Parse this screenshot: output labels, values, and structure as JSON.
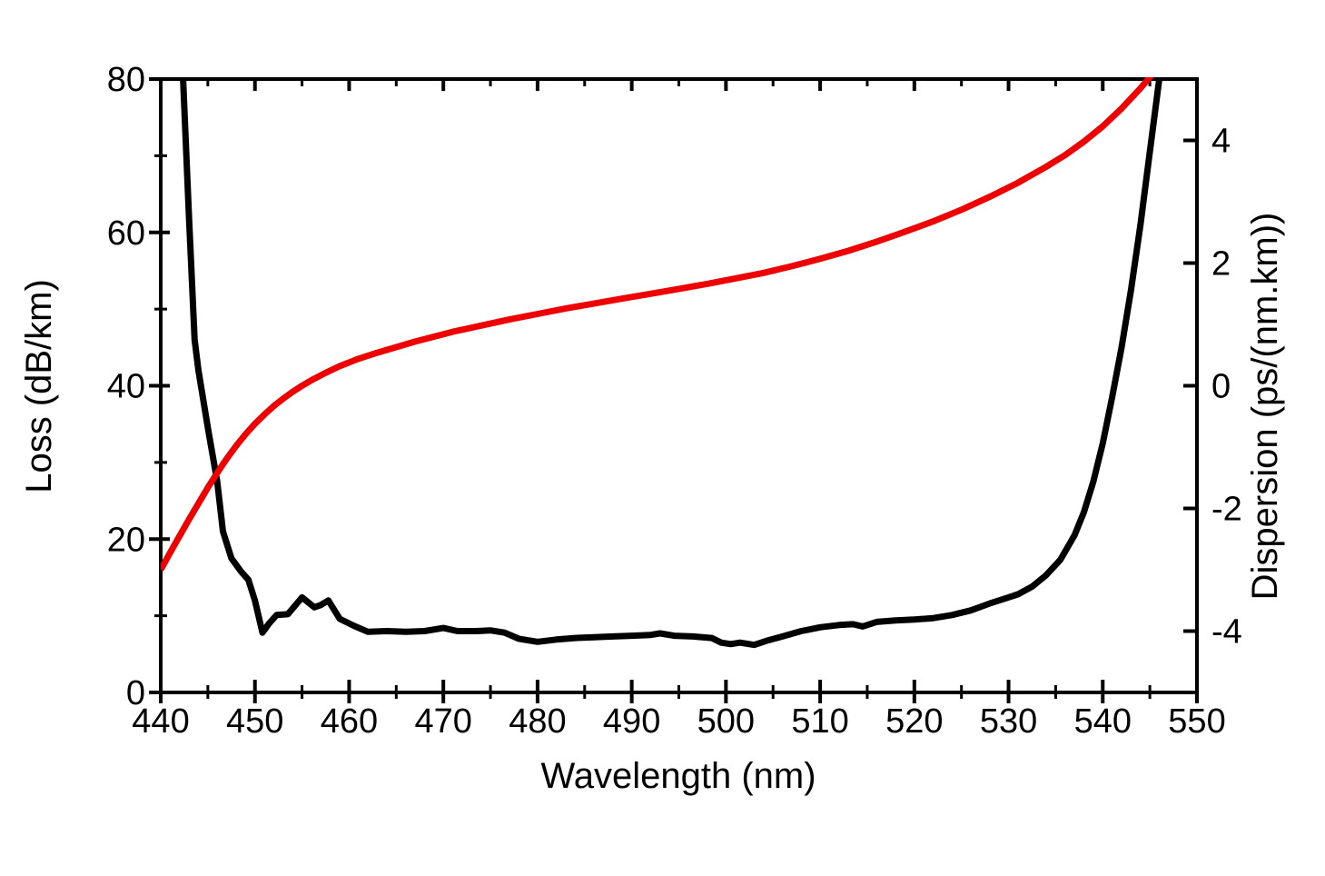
{
  "figure": {
    "background": "#ffffff",
    "title": ""
  },
  "chart_data": {
    "type": "line",
    "title": "",
    "xlabel": "Wavelength (nm)",
    "x_axis": {
      "range": [
        440,
        550
      ],
      "major_ticks": [
        440,
        450,
        460,
        470,
        480,
        490,
        500,
        510,
        520,
        530,
        540,
        550
      ],
      "minor_ticks": [
        445,
        455,
        465,
        475,
        485,
        495,
        505,
        515,
        525,
        535,
        545
      ],
      "grid": false
    },
    "left_axis": {
      "label": "Loss (dB/km)",
      "range": [
        0,
        80
      ],
      "major_ticks": [
        0,
        20,
        40,
        60,
        80
      ],
      "minor_ticks": [
        10,
        30,
        50,
        70
      ],
      "color": "#000000"
    },
    "right_axis": {
      "label": "Dispersion (ps/(nm.km))",
      "range": [
        -5,
        5
      ],
      "major_ticks": [
        -4,
        -2,
        0,
        2,
        4
      ],
      "color": "#ee0000"
    },
    "legend": "none",
    "series": [
      {
        "name": "Loss",
        "axis": "left",
        "color": "#000000",
        "stroke_width": 7,
        "points": [
          [
            442.3,
            82
          ],
          [
            443.0,
            62
          ],
          [
            443.6,
            46
          ],
          [
            444.0,
            42
          ],
          [
            445.0,
            34.5
          ],
          [
            446.0,
            27.5
          ],
          [
            446.6,
            21.0
          ],
          [
            447.5,
            17.5
          ],
          [
            448.5,
            15.8
          ],
          [
            449.3,
            14.7
          ],
          [
            450.0,
            12.0
          ],
          [
            450.8,
            7.8
          ],
          [
            451.5,
            9.0
          ],
          [
            452.3,
            10.1
          ],
          [
            453.5,
            10.2
          ],
          [
            455.0,
            12.4
          ],
          [
            456.3,
            11.1
          ],
          [
            457.0,
            11.4
          ],
          [
            457.8,
            12.0
          ],
          [
            459.0,
            9.6
          ],
          [
            460.5,
            8.7
          ],
          [
            462.0,
            7.9
          ],
          [
            464.0,
            8.0
          ],
          [
            466.0,
            7.9
          ],
          [
            468.0,
            8.0
          ],
          [
            470.0,
            8.4
          ],
          [
            471.5,
            8.0
          ],
          [
            473.5,
            8.0
          ],
          [
            475.0,
            8.1
          ],
          [
            476.5,
            7.8
          ],
          [
            478.0,
            7.0
          ],
          [
            480.0,
            6.6
          ],
          [
            482.0,
            6.9
          ],
          [
            484.0,
            7.1
          ],
          [
            486.0,
            7.2
          ],
          [
            488.0,
            7.3
          ],
          [
            490.0,
            7.4
          ],
          [
            492.0,
            7.5
          ],
          [
            493.0,
            7.7
          ],
          [
            494.5,
            7.4
          ],
          [
            496.5,
            7.3
          ],
          [
            498.5,
            7.1
          ],
          [
            499.5,
            6.5
          ],
          [
            500.5,
            6.3
          ],
          [
            501.5,
            6.5
          ],
          [
            503.0,
            6.2
          ],
          [
            504.5,
            6.8
          ],
          [
            506.0,
            7.3
          ],
          [
            508.0,
            8.0
          ],
          [
            510.0,
            8.5
          ],
          [
            512.0,
            8.8
          ],
          [
            513.5,
            8.9
          ],
          [
            514.5,
            8.6
          ],
          [
            516.0,
            9.2
          ],
          [
            518.0,
            9.4
          ],
          [
            520.0,
            9.5
          ],
          [
            522.0,
            9.7
          ],
          [
            524.0,
            10.1
          ],
          [
            526.0,
            10.7
          ],
          [
            528.0,
            11.6
          ],
          [
            530.0,
            12.4
          ],
          [
            531.0,
            12.8
          ],
          [
            532.5,
            13.8
          ],
          [
            534.0,
            15.3
          ],
          [
            535.5,
            17.3
          ],
          [
            537.0,
            20.5
          ],
          [
            538.0,
            23.5
          ],
          [
            539.0,
            27.5
          ],
          [
            540.0,
            32.5
          ],
          [
            541.0,
            38.5
          ],
          [
            542.0,
            45.0
          ],
          [
            543.0,
            52.5
          ],
          [
            544.0,
            61.0
          ],
          [
            545.0,
            70.5
          ],
          [
            546.0,
            80.0
          ],
          [
            546.4,
            84.0
          ]
        ]
      },
      {
        "name": "Dispersion",
        "axis": "right",
        "color": "#ee0000",
        "stroke_width": 7,
        "points": [
          [
            440.0,
            -3.0
          ],
          [
            441.0,
            -2.72
          ],
          [
            442.0,
            -2.45
          ],
          [
            443.0,
            -2.18
          ],
          [
            444.0,
            -1.92
          ],
          [
            445.0,
            -1.66
          ],
          [
            446.0,
            -1.42
          ],
          [
            447.0,
            -1.19
          ],
          [
            448.0,
            -0.98
          ],
          [
            449.0,
            -0.79
          ],
          [
            450.0,
            -0.62
          ],
          [
            451.0,
            -0.47
          ],
          [
            452.0,
            -0.33
          ],
          [
            453.0,
            -0.21
          ],
          [
            454.0,
            -0.1
          ],
          [
            455.0,
            0.0
          ],
          [
            456.0,
            0.09
          ],
          [
            457.5,
            0.21
          ],
          [
            459.0,
            0.32
          ],
          [
            461.0,
            0.44
          ],
          [
            463.0,
            0.54
          ],
          [
            465.0,
            0.63
          ],
          [
            467.0,
            0.72
          ],
          [
            469.0,
            0.8
          ],
          [
            471.0,
            0.88
          ],
          [
            474.0,
            0.98
          ],
          [
            477.0,
            1.08
          ],
          [
            480.0,
            1.17
          ],
          [
            483.0,
            1.26
          ],
          [
            486.0,
            1.34
          ],
          [
            489.0,
            1.42
          ],
          [
            492.0,
            1.5
          ],
          [
            495.0,
            1.58
          ],
          [
            498.0,
            1.66
          ],
          [
            501.0,
            1.75
          ],
          [
            504.0,
            1.84
          ],
          [
            507.0,
            1.95
          ],
          [
            510.0,
            2.07
          ],
          [
            513.0,
            2.2
          ],
          [
            516.0,
            2.35
          ],
          [
            519.0,
            2.51
          ],
          [
            522.0,
            2.68
          ],
          [
            525.0,
            2.87
          ],
          [
            528.0,
            3.08
          ],
          [
            531.0,
            3.31
          ],
          [
            534.0,
            3.57
          ],
          [
            536.0,
            3.76
          ],
          [
            538.0,
            3.98
          ],
          [
            540.0,
            4.23
          ],
          [
            542.0,
            4.52
          ],
          [
            544.0,
            4.85
          ],
          [
            545.5,
            5.12
          ],
          [
            546.5,
            5.32
          ]
        ]
      }
    ]
  }
}
